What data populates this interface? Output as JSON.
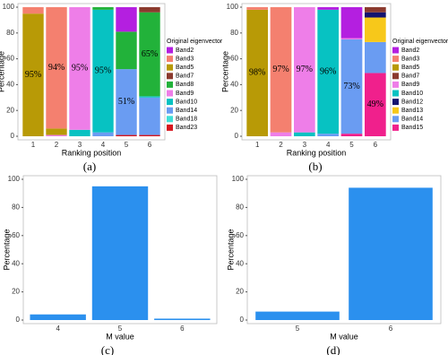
{
  "chart_data": [
    {
      "type": "stacked_bar",
      "panel_label": "(a)",
      "x_label": "Ranking position",
      "y_label": "Percentage",
      "legend_title": "Original eigenvector",
      "categories": [
        "1",
        "2",
        "3",
        "4",
        "5",
        "6"
      ],
      "ylim": [
        0,
        100
      ],
      "yticks": [
        0,
        20,
        40,
        60,
        80,
        100
      ],
      "series": [
        {
          "name": "Band2",
          "color": "#b41fe0",
          "values": [
            0,
            0,
            0,
            0,
            19,
            0
          ]
        },
        {
          "name": "Band3",
          "color": "#f4806f",
          "values": [
            5,
            94,
            0,
            0,
            0,
            0
          ],
          "value_labels": [
            null,
            "94%",
            null,
            null,
            null,
            null
          ]
        },
        {
          "name": "Band5",
          "color": "#b89a06",
          "values": [
            95,
            5,
            0,
            0,
            0,
            0
          ],
          "value_labels": [
            "95%",
            null,
            null,
            null,
            null,
            null
          ]
        },
        {
          "name": "Band7",
          "color": "#8b3a2e",
          "values": [
            0,
            0,
            0,
            0,
            0,
            4
          ]
        },
        {
          "name": "Band8",
          "color": "#22b23a",
          "values": [
            0,
            0,
            0,
            2,
            29,
            65
          ],
          "value_labels": [
            null,
            null,
            null,
            null,
            null,
            "65%"
          ]
        },
        {
          "name": "Band9",
          "color": "#ee7ee8",
          "values": [
            0,
            1,
            95,
            0,
            0,
            0
          ],
          "value_labels": [
            null,
            null,
            "95%",
            null,
            null,
            null
          ]
        },
        {
          "name": "Band10",
          "color": "#07c2c2",
          "values": [
            0,
            0,
            5,
            95,
            0,
            1
          ],
          "value_labels": [
            null,
            null,
            null,
            "95%",
            null,
            null
          ]
        },
        {
          "name": "Band14",
          "color": "#6a9cf2",
          "values": [
            0,
            0,
            0,
            3,
            51,
            29
          ],
          "value_labels": [
            null,
            null,
            null,
            null,
            "51%",
            null
          ]
        },
        {
          "name": "Band18",
          "color": "#3fe0d8",
          "values": [
            0,
            0,
            0,
            0,
            0,
            0
          ]
        },
        {
          "name": "Band23",
          "color": "#d8161e",
          "values": [
            0,
            0,
            0,
            0,
            1,
            1
          ]
        }
      ]
    },
    {
      "type": "stacked_bar",
      "panel_label": "(b)",
      "x_label": "Ranking position",
      "y_label": "Percentage",
      "legend_title": "Original eigenvector",
      "categories": [
        "1",
        "2",
        "3",
        "4",
        "5",
        "6"
      ],
      "ylim": [
        0,
        100
      ],
      "yticks": [
        0,
        20,
        40,
        60,
        80,
        100
      ],
      "series": [
        {
          "name": "Band2",
          "color": "#b41fe0",
          "values": [
            0,
            0,
            0,
            2,
            24,
            0
          ]
        },
        {
          "name": "Band3",
          "color": "#f4806f",
          "values": [
            2,
            97,
            0,
            0,
            0,
            0
          ],
          "value_labels": [
            null,
            "97%",
            null,
            null,
            null,
            null
          ]
        },
        {
          "name": "Band5",
          "color": "#b89a06",
          "values": [
            98,
            0,
            0,
            0,
            0,
            0
          ],
          "value_labels": [
            "98%",
            null,
            null,
            null,
            null,
            null
          ]
        },
        {
          "name": "Band7",
          "color": "#8b3a2e",
          "values": [
            0,
            0,
            0,
            0,
            0,
            4
          ]
        },
        {
          "name": "Band9",
          "color": "#ee7ee8",
          "values": [
            0,
            3,
            97,
            0,
            1,
            0
          ],
          "value_labels": [
            null,
            null,
            "97%",
            null,
            null,
            null
          ]
        },
        {
          "name": "Band10",
          "color": "#07c2c2",
          "values": [
            0,
            0,
            3,
            96,
            0,
            0
          ],
          "value_labels": [
            null,
            null,
            null,
            "96%",
            null,
            null
          ]
        },
        {
          "name": "Band12",
          "color": "#141470",
          "values": [
            0,
            0,
            0,
            0,
            0,
            4
          ]
        },
        {
          "name": "Band13",
          "color": "#f7c81a",
          "values": [
            0,
            0,
            0,
            0,
            0,
            19
          ]
        },
        {
          "name": "Band14",
          "color": "#6a9cf2",
          "values": [
            0,
            0,
            0,
            2,
            73,
            24
          ],
          "value_labels": [
            null,
            null,
            null,
            null,
            "73%",
            null
          ]
        },
        {
          "name": "Band15",
          "color": "#f0208c",
          "values": [
            0,
            0,
            0,
            0,
            2,
            49
          ],
          "value_labels": [
            null,
            null,
            null,
            null,
            null,
            "49%"
          ]
        }
      ]
    },
    {
      "type": "bar",
      "panel_label": "(c)",
      "x_label": "M value",
      "y_label": "Percentage",
      "color": "#2b90ee",
      "categories": [
        "4",
        "5",
        "6"
      ],
      "values": [
        4,
        95,
        1
      ],
      "ylim": [
        0,
        100
      ],
      "yticks": [
        0,
        20,
        40,
        60,
        80,
        100
      ]
    },
    {
      "type": "bar",
      "panel_label": "(d)",
      "x_label": "M value",
      "y_label": "Percentage",
      "color": "#2b90ee",
      "categories": [
        "5",
        "6"
      ],
      "values": [
        6,
        94
      ],
      "ylim": [
        0,
        100
      ],
      "yticks": [
        0,
        20,
        40,
        60,
        80,
        100
      ]
    }
  ]
}
